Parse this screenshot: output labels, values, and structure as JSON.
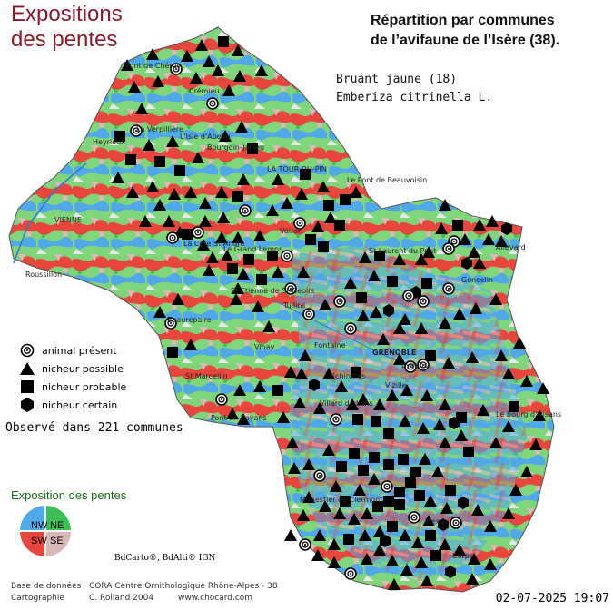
{
  "title_exposition": "Expositions",
  "title_exposition2": "des pentes",
  "map_title_line1": "Répartition par communes",
  "map_title_line2": "de l’avifaune de l’Isère (38).",
  "species_common": "Bruant jaune  (18)",
  "species_latin": "Emberiza citrinella L.",
  "legend": [
    {
      "symbol": "present",
      "label": "animal présent"
    },
    {
      "symbol": "possible",
      "label": "nicheur possible"
    },
    {
      "symbol": "probable",
      "label": "nicheur probable"
    },
    {
      "symbol": "certain",
      "label": "nicheur certain"
    }
  ],
  "observed_text": "Observé dans 221 communes",
  "exposition_legend_title": "Exposition des pentes",
  "compass": {
    "nw": "NW",
    "ne": "NE",
    "sw": "SW",
    "se": "SE"
  },
  "colors": {
    "nw": "#4fa8e8",
    "ne": "#3cbf55",
    "sw": "#e8463c",
    "se": "#d9b8b8",
    "flat": "#e8e8e8",
    "title": "#8b1a2b"
  },
  "bdcarto": "BdCarto®, BdAlti® IGN",
  "credits": {
    "db_label": "Base de données",
    "db_value": "CORA Centre Ornithologique Rhône-Alpes - 38",
    "carto_label": "Cartographie",
    "carto_value": "C. Rolland 2004",
    "site": "www.chocard.com"
  },
  "date": "02-07-2025 19:07",
  "places": [
    "Pont de Chéruy",
    "Crémieu",
    "L'Isle d'Abeau",
    "Bourgoin-Jallieu",
    "Heyrieux",
    "La Verpillière",
    "LA TOUR-DU-PIN",
    "Le Pont de Beauvoisin",
    "VIENNE",
    "Voiron",
    "La Côte St André",
    "Le Grand Lemps",
    "Roussillon",
    "Beaurepaire",
    "St Etienne de St Geoirs",
    "Tullins",
    "St Laurent du Pont",
    "Goncelin",
    "Allevard",
    "Vinay",
    "St Marcellin",
    "Pont en Royans",
    "Villard de Lans",
    "GRENOBLE",
    "Vizille",
    "Echirolles",
    "Le Bourg d'Oisans",
    "Mens",
    "Monestier de Clermont",
    "Corps",
    "Fontaine",
    "Eybens"
  ]
}
